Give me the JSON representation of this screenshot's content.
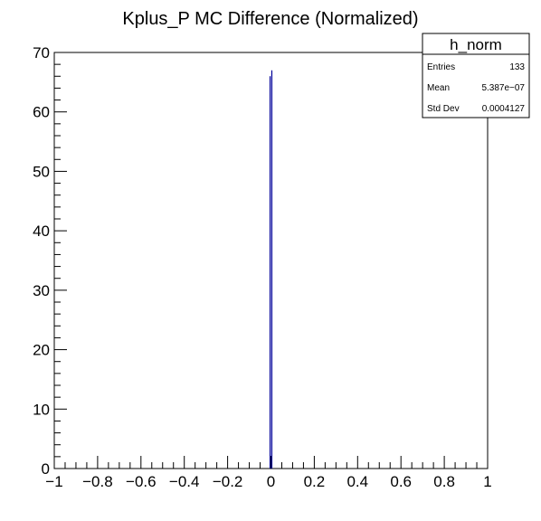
{
  "chart_data": {
    "type": "bar",
    "title": "Kplus_P MC Difference (Normalized)",
    "xlabel": "",
    "ylabel": "",
    "xlim": [
      -1,
      1
    ],
    "ylim": [
      0,
      70
    ],
    "x_ticks": [
      -1,
      -0.8,
      -0.6,
      -0.4,
      -0.2,
      0,
      0.2,
      0.4,
      0.6,
      0.8,
      1
    ],
    "x_tick_labels": [
      "−1",
      "−0.8",
      "−0.6",
      "−0.4",
      "−0.2",
      "0",
      "0.2",
      "0.4",
      "0.6",
      "0.8",
      "1"
    ],
    "y_ticks": [
      0,
      10,
      20,
      30,
      40,
      50,
      60,
      70
    ],
    "y_tick_labels": [
      "0",
      "10",
      "20",
      "30",
      "40",
      "50",
      "60",
      "70"
    ],
    "grid": false,
    "series": [
      {
        "bins": [
          {
            "x": -0.004,
            "value": 66
          },
          {
            "x": 0.004,
            "value": 67
          }
        ],
        "color": "#000099"
      }
    ],
    "stats_box": {
      "name": "h_norm",
      "rows": [
        {
          "label": "Entries",
          "value": "133"
        },
        {
          "label": "Mean",
          "value": "5.387e−07"
        },
        {
          "label": "Std Dev",
          "value": "0.0004127"
        }
      ],
      "placement": "top-right"
    }
  }
}
